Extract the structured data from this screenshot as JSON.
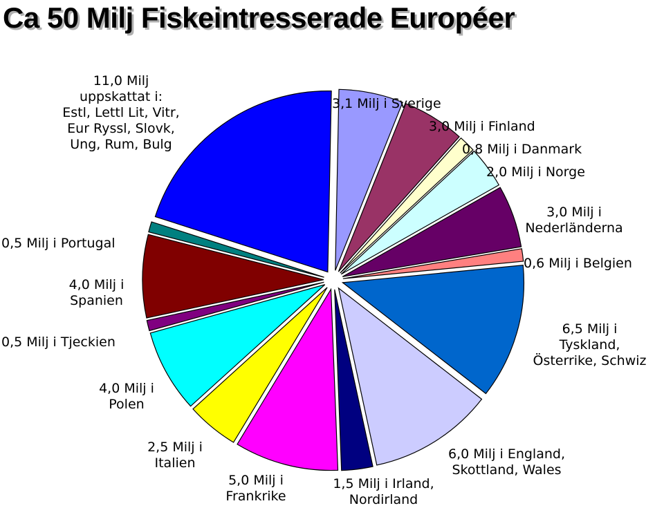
{
  "chart_data": {
    "type": "pie",
    "title": "Ca 50 Milj Fiskeintresserade Européer",
    "unit": "Milj",
    "slices": [
      {
        "label": "3,1 Milj i Sverige",
        "value": 3.1,
        "color": "#9999ff"
      },
      {
        "label": "3,0 Milj i Finland",
        "value": 3.0,
        "color": "#993366"
      },
      {
        "label": "0,8 Milj i  Danmark",
        "value": 0.8,
        "color": "#ffffcc"
      },
      {
        "label": "2,0 Milj i Norge",
        "value": 2.0,
        "color": "#ccffff"
      },
      {
        "label": "3,0 Milj i\nNederländerna",
        "value": 3.0,
        "color": "#660066"
      },
      {
        "label": "0,6 Milj i Belgien",
        "value": 0.6,
        "color": "#ff8080"
      },
      {
        "label": "6,5 Milj i\nTyskland,\nÖsterrike, Schwiz",
        "value": 6.5,
        "color": "#0066cc"
      },
      {
        "label": "6,0 Milj i England,\nSkottland, Wales",
        "value": 6.0,
        "color": "#ccccff"
      },
      {
        "label": "1,5 Milj i Irland,\nNordirland",
        "value": 1.5,
        "color": "#000080"
      },
      {
        "label": "5,0 Milj i\nFrankrike",
        "value": 5.0,
        "color": "#ff00ff"
      },
      {
        "label": "2,5 Milj i\nItalien",
        "value": 2.5,
        "color": "#ffff00"
      },
      {
        "label": "4,0 Milj i\nPolen",
        "value": 4.0,
        "color": "#00ffff"
      },
      {
        "label": "0,5 Milj i Tjeckien",
        "value": 0.5,
        "color": "#800080"
      },
      {
        "label": "4,0 Milj i\nSpanien",
        "value": 4.0,
        "color": "#800000"
      },
      {
        "label": "0,5 Milj i Portugal",
        "value": 0.5,
        "color": "#008080"
      },
      {
        "label": "11,0 Milj\nuppskattat i:\nEstl, Lettl Lit, Vitr,\nEur Ryssl, Slovk,\nUng, Rum, Bulg",
        "value": 11.0,
        "color": "#0000ff"
      }
    ],
    "legend": "none",
    "exploded": true
  }
}
